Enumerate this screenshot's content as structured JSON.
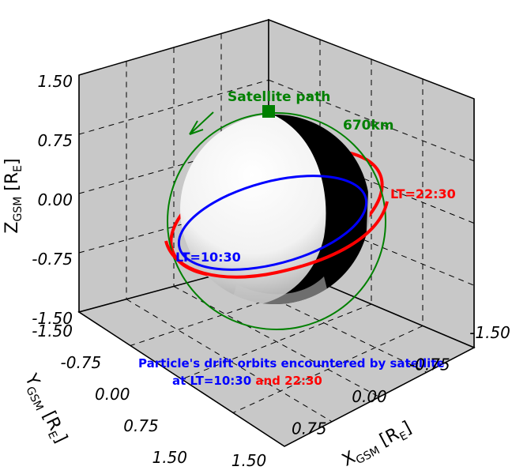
{
  "chart_data": {
    "type": "3d-orbit",
    "axes": {
      "z": {
        "label": "Z",
        "subscript": "GSM",
        "unit_open": " [R",
        "unit_sub": "E",
        "unit_close": "]",
        "ticks": [
          "1.50",
          "0.75",
          "0.00",
          "-0.75",
          "-1.50"
        ]
      },
      "y": {
        "label": "Y",
        "subscript": "GSM",
        "unit_open": " [R",
        "unit_sub": "E",
        "unit_close": "]",
        "ticks": [
          "-1.50",
          "-0.75",
          "0.00",
          "0.75",
          "1.50"
        ]
      },
      "x": {
        "label": "X",
        "subscript": "GSM",
        "unit_open": " [R",
        "unit_sub": "E",
        "unit_close": "]",
        "ticks": [
          "1.50",
          "0.75",
          "0.00",
          "-0.75",
          "-1.50"
        ]
      },
      "range": [
        -1.5,
        1.5
      ]
    },
    "annotations": {
      "satellite_path": "Satellite path",
      "altitude": "670km",
      "lt_day": "LT=10:30",
      "lt_night": "LT=22:30",
      "caption_line1": "Particle's drift orbits encountered by satellite",
      "caption_line2a": "at LT=10:30",
      "caption_line2b": " and 22:30"
    },
    "series": [
      {
        "name": "LT=10:30",
        "color": "#0000ff"
      },
      {
        "name": "LT=22:30",
        "color": "#ff0000"
      },
      {
        "name": "Satellite path",
        "color": "#008000"
      }
    ],
    "colors": {
      "panel": "#c8c8c8",
      "grid": "#000000",
      "earth_day": "#ffffff",
      "earth_night": "#000000"
    }
  }
}
